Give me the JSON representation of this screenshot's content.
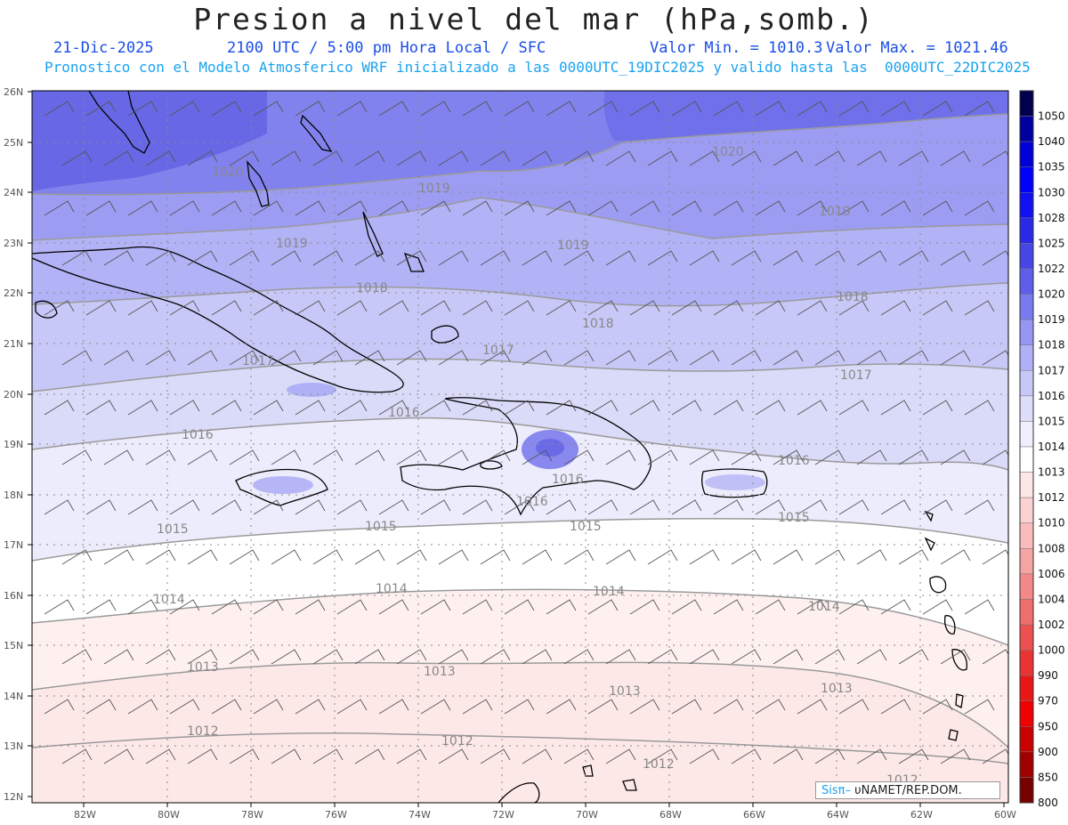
{
  "header": {
    "title": "Presion a nivel del mar (hPa,somb.)",
    "date": "21-Dic-2025",
    "time": "2100 UTC / 5:00 pm Hora Local / SFC",
    "valmin": "Valor Min. = 1010.3",
    "valmax": "Valor Max. = 1021.46",
    "subtitle": "Pronostico con el Modelo Atmosferico WRF inicializado a las 0000UTC_19DIC2025 y valido hasta las  0000UTC_22DIC2025"
  },
  "axes": {
    "lat_labels": [
      "26N",
      "25N",
      "24N",
      "23N",
      "22N",
      "21N",
      "20N",
      "19N",
      "18N",
      "17N",
      "16N",
      "15N",
      "14N",
      "13N",
      "12N"
    ],
    "lon_labels": [
      "82W",
      "80W",
      "78W",
      "76W",
      "74W",
      "72W",
      "70W",
      "68W",
      "66W",
      "64W",
      "62W",
      "60W"
    ]
  },
  "colorbar": {
    "levels": [
      "1050",
      "1040",
      "1035",
      "1030",
      "1028",
      "1025",
      "1022",
      "1020",
      "1019",
      "1018",
      "1017",
      "1016",
      "1015",
      "1014",
      "1013",
      "1012",
      "1010",
      "1008",
      "1006",
      "1004",
      "1002",
      "1000",
      "990",
      "970",
      "950",
      "900",
      "850",
      "800"
    ],
    "colors": [
      "#00004e",
      "#0000a0",
      "#0000d8",
      "#0000ff",
      "#1010f0",
      "#2a2ae6",
      "#4646e6",
      "#5e5eea",
      "#7a7af0",
      "#9696f4",
      "#b0b0f6",
      "#c8c8f8",
      "#dedefb",
      "#efeffd",
      "#ffffff",
      "#fde6e6",
      "#fbd2d2",
      "#f8bcbc",
      "#f5a4a4",
      "#f28888",
      "#ef6e6e",
      "#ec5050",
      "#ea3434",
      "#e81818",
      "#f00000",
      "#c80000",
      "#a00000",
      "#780000"
    ]
  },
  "isobar_labels": [
    "1020",
    "1019",
    "1019",
    "1020",
    "1019",
    "1019",
    "1018",
    "1018",
    "1018",
    "1017",
    "1017",
    "1017",
    "1016",
    "1016",
    "1016",
    "1016",
    "1016",
    "1015",
    "1015",
    "1015",
    "1015",
    "1014",
    "1014",
    "1014",
    "1014",
    "1013",
    "1013",
    "1013",
    "1013",
    "1012",
    "1012",
    "1012",
    "1012"
  ],
  "credit": {
    "brand": "Sisπ–",
    "org": " υNAMET/REP.DOM."
  }
}
